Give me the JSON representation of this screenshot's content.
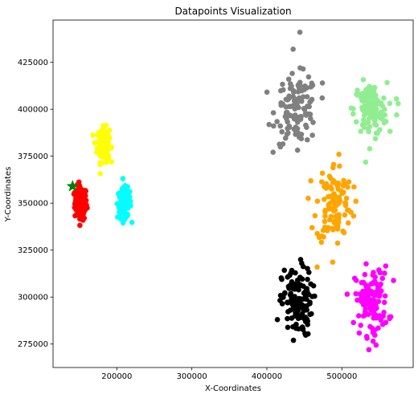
{
  "chart_data": {
    "type": "scatter",
    "title": "Datapoints Visualization",
    "xlabel": "X-Coordinates",
    "ylabel": "Y-Coordinates",
    "xlim": [
      115000,
      595000
    ],
    "ylim": [
      262500,
      447500
    ],
    "xticks": [
      200000,
      300000,
      400000,
      500000
    ],
    "xtick_labels": [
      "200000",
      "300000",
      "400000",
      "500000"
    ],
    "yticks": [
      275000,
      300000,
      325000,
      350000,
      375000,
      400000,
      425000
    ],
    "ytick_labels": [
      "275000",
      "300000",
      "325000",
      "350000",
      "375000",
      "400000",
      "425000"
    ],
    "grid": false,
    "clusters": [
      {
        "color": "#ff0000",
        "center": [
          152000,
          350000
        ],
        "spread": [
          4000,
          4500
        ],
        "count": 140,
        "shape": "gaussian"
      },
      {
        "color": "#ffff00",
        "center": [
          182000,
          381000
        ],
        "spread": [
          4000,
          4500
        ],
        "count": 130,
        "shape": "gaussian"
      },
      {
        "color": "#00ffff",
        "center": [
          210000,
          350000
        ],
        "spread": [
          4500,
          4000
        ],
        "count": 130,
        "shape": "gaussian"
      },
      {
        "color": "#808080",
        "center": [
          440000,
          400000
        ],
        "spread": [
          14000,
          9000
        ],
        "count": 120,
        "shape": "gaussian"
      },
      {
        "color": "#90ee90",
        "center": [
          538000,
          400000
        ],
        "spread": [
          11000,
          7000
        ],
        "count": 120,
        "shape": "gaussian"
      },
      {
        "color": "#ffa500",
        "center": [
          490000,
          350000
        ],
        "spread": [
          12000,
          11000
        ],
        "count": 110,
        "shape": "gaussian"
      },
      {
        "color": "#000000",
        "center": [
          440000,
          297000
        ],
        "spread": [
          10000,
          9000
        ],
        "count": 130,
        "shape": "gaussian"
      },
      {
        "color": "#ff00ff",
        "center": [
          540000,
          298000
        ],
        "spread": [
          11000,
          9000
        ],
        "count": 120,
        "shape": "gaussian"
      }
    ],
    "outliers": [
      {
        "color": "#808080",
        "x": 444000,
        "y": 441000
      },
      {
        "color": "#808080",
        "x": 435000,
        "y": 432000
      },
      {
        "color": "#808080",
        "x": 474000,
        "y": 414000
      },
      {
        "color": "#808080",
        "x": 418000,
        "y": 380000
      },
      {
        "color": "#90ee90",
        "x": 573000,
        "y": 397000
      },
      {
        "color": "#90ee90",
        "x": 575000,
        "y": 403000
      },
      {
        "color": "#90ee90",
        "x": 537000,
        "y": 379000
      },
      {
        "color": "#ffa500",
        "x": 467000,
        "y": 316000
      },
      {
        "color": "#ffa500",
        "x": 496000,
        "y": 376000
      },
      {
        "color": "#000000",
        "x": 414000,
        "y": 288000
      },
      {
        "color": "#000000",
        "x": 445000,
        "y": 320000
      },
      {
        "color": "#ff00ff",
        "x": 536000,
        "y": 272000
      },
      {
        "color": "#ff00ff",
        "x": 517000,
        "y": 310000
      }
    ],
    "marker": {
      "type": "star",
      "color": "#008000",
      "x": 141000,
      "y": 359000
    }
  }
}
